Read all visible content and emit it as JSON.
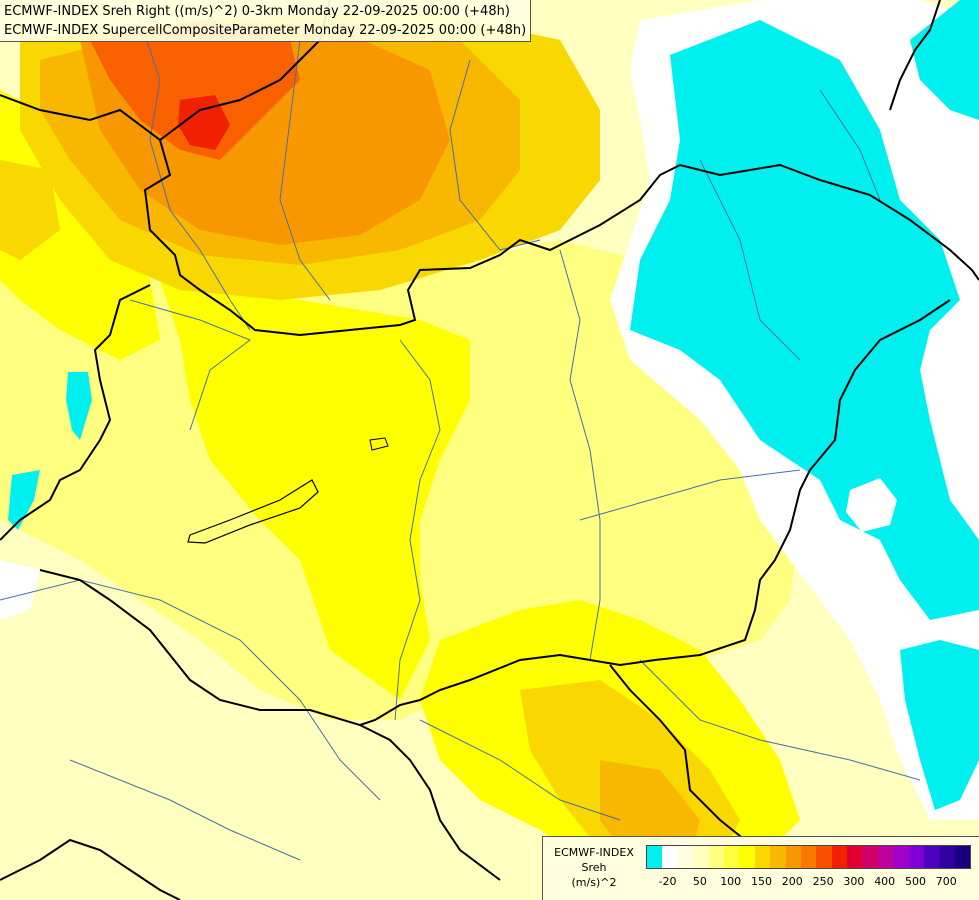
{
  "header": {
    "line1": "ECMWF-INDEX Sreh Right ((m/s)^2) 0-3km Monday 22-09-2025 00:00 (+48h)",
    "line2": "ECMWF-INDEX SupercellCompositeParameter Monday 22-09-2025 00:00 (+48h)"
  },
  "legend": {
    "source": "ECMWF-INDEX",
    "parameter": "Sreh",
    "unit": "(m/s)^2",
    "colors": [
      "#00f0f0",
      "#ffffff",
      "#ffffe0",
      "#ffffc0",
      "#ffff80",
      "#ffff40",
      "#ffff00",
      "#f8d800",
      "#f8b800",
      "#f89800",
      "#f87800",
      "#f85000",
      "#f02000",
      "#e00030",
      "#d0006a",
      "#c0009a",
      "#a000c8",
      "#8000d8",
      "#5000c0",
      "#3000a0",
      "#180080"
    ],
    "ticks": [
      "-20",
      "50",
      "100",
      "150",
      "200",
      "250",
      "300",
      "400",
      "500",
      "700"
    ]
  },
  "map": {
    "colors": {
      "cyan": "#00f0f0",
      "white": "#ffffff",
      "pale": "#ffffc0",
      "light": "#ffff80",
      "yellow": "#ffff00",
      "gold": "#f8d800",
      "orange": "#f8b800",
      "deep_orange": "#f89800",
      "red_orange": "#f86000",
      "red": "#f02000",
      "border": "#000000",
      "river": "#4a6ea8"
    }
  }
}
